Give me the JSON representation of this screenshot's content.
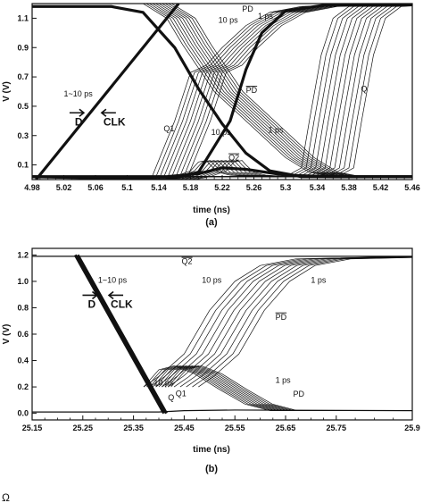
{
  "chart_data": [
    {
      "type": "line",
      "caption": "(a)",
      "xlabel": "time (ns)",
      "ylabel": "V (V)",
      "xlim": [
        4.98,
        5.46
      ],
      "ylim": [
        0.0,
        1.2
      ],
      "x_ticks": [
        "4.98",
        "5.02",
        "5.06",
        "5.1",
        "5.14",
        "5.18",
        "5.22",
        "5.26",
        "5.3",
        "5.34",
        "5.38",
        "5.42",
        "5.46"
      ],
      "y_ticks": [
        "0.1",
        "0.3",
        "0.5",
        "0.7",
        "0.9",
        "1.1"
      ],
      "x_tick_values": [
        4.98,
        5.02,
        5.06,
        5.1,
        5.14,
        5.18,
        5.22,
        5.26,
        5.3,
        5.34,
        5.38,
        5.42,
        5.46
      ],
      "y_tick_values": [
        0.1,
        0.3,
        0.5,
        0.7,
        0.9,
        1.1
      ],
      "annotations": [
        {
          "text": "PD",
          "x": 5.245,
          "y": 1.145
        },
        {
          "text": "10 ps",
          "x": 5.215,
          "y": 1.07
        },
        {
          "text": "1 ps",
          "x": 5.265,
          "y": 1.095
        },
        {
          "text": "1~10 ps",
          "x": 5.02,
          "y": 0.565
        },
        {
          "text": "PD",
          "x": 5.25,
          "y": 0.59,
          "overline": true
        },
        {
          "text": "Q",
          "x": 5.395,
          "y": 0.6
        },
        {
          "text": "Q1",
          "x": 5.146,
          "y": 0.33
        },
        {
          "text": "10 ps",
          "x": 5.206,
          "y": 0.305
        },
        {
          "text": "1 ps",
          "x": 5.278,
          "y": 0.32
        },
        {
          "text": "Q2",
          "x": 5.228,
          "y": 0.13,
          "overline": true
        }
      ],
      "big_labels": [
        {
          "text": "D",
          "x": 5.034,
          "y": 0.37
        },
        {
          "text": "CLK",
          "x": 5.07,
          "y": 0.37
        }
      ],
      "series": [
        {
          "label": "D",
          "points": [
            [
              4.985,
              0.0
            ],
            [
              5.165,
              1.2
            ]
          ],
          "bold": true
        },
        {
          "label": "CLK",
          "points": [
            [
              4.98,
              1.18
            ],
            [
              5.08,
              1.18
            ],
            [
              5.12,
              1.14
            ],
            [
              5.16,
              0.9
            ],
            [
              5.19,
              0.62
            ],
            [
              5.22,
              0.38
            ],
            [
              5.25,
              0.18
            ],
            [
              5.28,
              0.06
            ],
            [
              5.32,
              0.02
            ],
            [
              5.46,
              0.02
            ]
          ],
          "bold": true
        },
        {
          "label": "Q1",
          "points": [
            [
              4.98,
              0.02
            ],
            [
              5.15,
              0.0
            ],
            [
              5.19,
              0.05
            ],
            [
              5.23,
              0.4
            ],
            [
              5.25,
              0.75
            ],
            [
              5.27,
              1.0
            ],
            [
              5.3,
              1.15
            ],
            [
              5.35,
              1.19
            ],
            [
              5.46,
              1.2
            ]
          ],
          "bold": true
        },
        {
          "label": "Q2",
          "points": [
            [
              4.98,
              0.02
            ],
            [
              5.15,
              0.02
            ],
            [
              5.19,
              0.04
            ],
            [
              5.22,
              0.08
            ],
            [
              5.25,
              0.07
            ],
            [
              5.3,
              0.03
            ],
            [
              5.36,
              0.02
            ],
            [
              5.46,
              0.02
            ]
          ],
          "bold": true
        },
        {
          "label": "PD",
          "family": true,
          "count": 10,
          "points": [
            [
              4.98,
              0.02
            ],
            [
              5.14,
              0.0
            ],
            [
              5.16,
              0.02
            ],
            [
              5.18,
              0.06
            ],
            [
              5.19,
              0.12
            ],
            [
              5.2,
              0.13
            ],
            [
              5.205,
              0.1
            ],
            [
              5.215,
              0.05
            ],
            [
              5.23,
              0.03
            ],
            [
              5.26,
              0.02
            ],
            [
              5.3,
              0.02
            ],
            [
              5.46,
              0.02
            ]
          ],
          "shift_x": 0.0,
          "shift_y": 0.0,
          "spread_points": [
            [
              5.13,
              0.0
            ],
            [
              5.16,
              0.4
            ],
            [
              5.18,
              0.73
            ],
            [
              5.2,
              0.78
            ],
            [
              5.22,
              0.9
            ],
            [
              5.25,
              1.05
            ],
            [
              5.28,
              1.14
            ],
            [
              5.32,
              1.18
            ],
            [
              5.46,
              1.2
            ]
          ],
          "spread_dx": 0.005
        },
        {
          "label": "PD_bar",
          "family": true,
          "count": 10,
          "points": [
            [
              5.12,
              1.2
            ],
            [
              5.15,
              1.1
            ],
            [
              5.17,
              0.92
            ],
            [
              5.19,
              0.76
            ],
            [
              5.21,
              0.6
            ],
            [
              5.24,
              0.45
            ],
            [
              5.27,
              0.3
            ],
            [
              5.3,
              0.15
            ],
            [
              5.33,
              0.05
            ],
            [
              5.36,
              0.02
            ],
            [
              5.46,
              0.02
            ]
          ],
          "spread_dx": 0.004
        },
        {
          "label": "Q",
          "family": true,
          "count": 12,
          "points": [
            [
              4.98,
              0.02
            ],
            [
              5.3,
              0.02
            ],
            [
              5.32,
              0.08
            ],
            [
              5.33,
              0.4
            ],
            [
              5.345,
              0.85
            ],
            [
              5.36,
              1.1
            ],
            [
              5.38,
              1.18
            ],
            [
              5.46,
              1.2
            ]
          ],
          "spread_dx": 0.006
        }
      ]
    },
    {
      "type": "line",
      "caption": "(b)",
      "xlabel": "time (ns)",
      "ylabel": "V (V)",
      "xlim": [
        25.15,
        25.9
      ],
      "ylim": [
        -0.05,
        1.25
      ],
      "x_ticks": [
        "25.15",
        "25.25",
        "25.35",
        "25.45",
        "25.55",
        "25.65",
        "25.75",
        "25.9"
      ],
      "y_ticks": [
        "0.0",
        "0.2",
        "0.4",
        "0.6",
        "0.8",
        "1.0",
        "1.2"
      ],
      "x_tick_values": [
        25.15,
        25.25,
        25.35,
        25.45,
        25.55,
        25.65,
        25.75,
        25.9
      ],
      "y_tick_values": [
        0.0,
        0.2,
        0.4,
        0.6,
        0.8,
        1.0,
        1.2
      ],
      "annotations": [
        {
          "text": "Q2",
          "x": 25.445,
          "y": 1.13,
          "overline": true
        },
        {
          "text": "1~10 ps",
          "x": 25.28,
          "y": 0.99
        },
        {
          "text": "10 ps",
          "x": 25.485,
          "y": 0.99
        },
        {
          "text": "1 ps",
          "x": 25.7,
          "y": 0.99
        },
        {
          "text": "PD",
          "x": 25.63,
          "y": 0.71,
          "overline": true
        },
        {
          "text": "1 ps",
          "x": 25.63,
          "y": 0.23
        },
        {
          "text": "10 ps",
          "x": 25.39,
          "y": 0.21
        },
        {
          "text": "PD",
          "x": 25.665,
          "y": 0.125
        },
        {
          "text": "Q",
          "x": 25.418,
          "y": 0.1
        },
        {
          "text": "Q1",
          "x": 25.433,
          "y": 0.13
        }
      ],
      "big_labels": [
        {
          "text": "D",
          "x": 25.26,
          "y": 0.8
        },
        {
          "text": "CLK",
          "x": 25.305,
          "y": 0.8
        }
      ],
      "series": [
        {
          "label": "D",
          "points": [
            [
              25.235,
              1.2
            ],
            [
              25.41,
              0.0
            ]
          ],
          "bold": true
        },
        {
          "label": "CLK",
          "points": [
            [
              25.24,
              1.2
            ],
            [
              25.415,
              0.0
            ]
          ],
          "bold": true
        },
        {
          "label": "Q2",
          "points": [
            [
              25.15,
              1.19
            ],
            [
              25.3,
              1.19
            ],
            [
              25.4,
              1.19
            ],
            [
              25.5,
              1.19
            ],
            [
              25.9,
              1.19
            ]
          ],
          "bold": false
        },
        {
          "label": "Q_Q1",
          "points": [
            [
              25.15,
              0.01
            ],
            [
              25.4,
              0.01
            ],
            [
              25.45,
              0.02
            ],
            [
              25.55,
              0.025
            ],
            [
              25.9,
              0.02
            ]
          ],
          "bold": false
        },
        {
          "label": "PD_bar",
          "family": true,
          "count": 10,
          "points": [
            [
              25.37,
              0.2
            ],
            [
              25.4,
              0.28
            ],
            [
              25.45,
              0.45
            ],
            [
              25.5,
              0.78
            ],
            [
              25.55,
              1.0
            ],
            [
              25.6,
              1.12
            ],
            [
              25.67,
              1.17
            ],
            [
              25.9,
              1.19
            ]
          ],
          "spread_dx": 0.012
        },
        {
          "label": "PD",
          "family": true,
          "count": 10,
          "points": [
            [
              25.37,
              0.2
            ],
            [
              25.4,
              0.33
            ],
            [
              25.43,
              0.36
            ],
            [
              25.47,
              0.3
            ],
            [
              25.52,
              0.18
            ],
            [
              25.57,
              0.07
            ],
            [
              25.62,
              0.02
            ],
            [
              25.9,
              0.02
            ]
          ],
          "spread_dx": 0.006
        }
      ]
    }
  ],
  "stray_glyph": "Ω"
}
